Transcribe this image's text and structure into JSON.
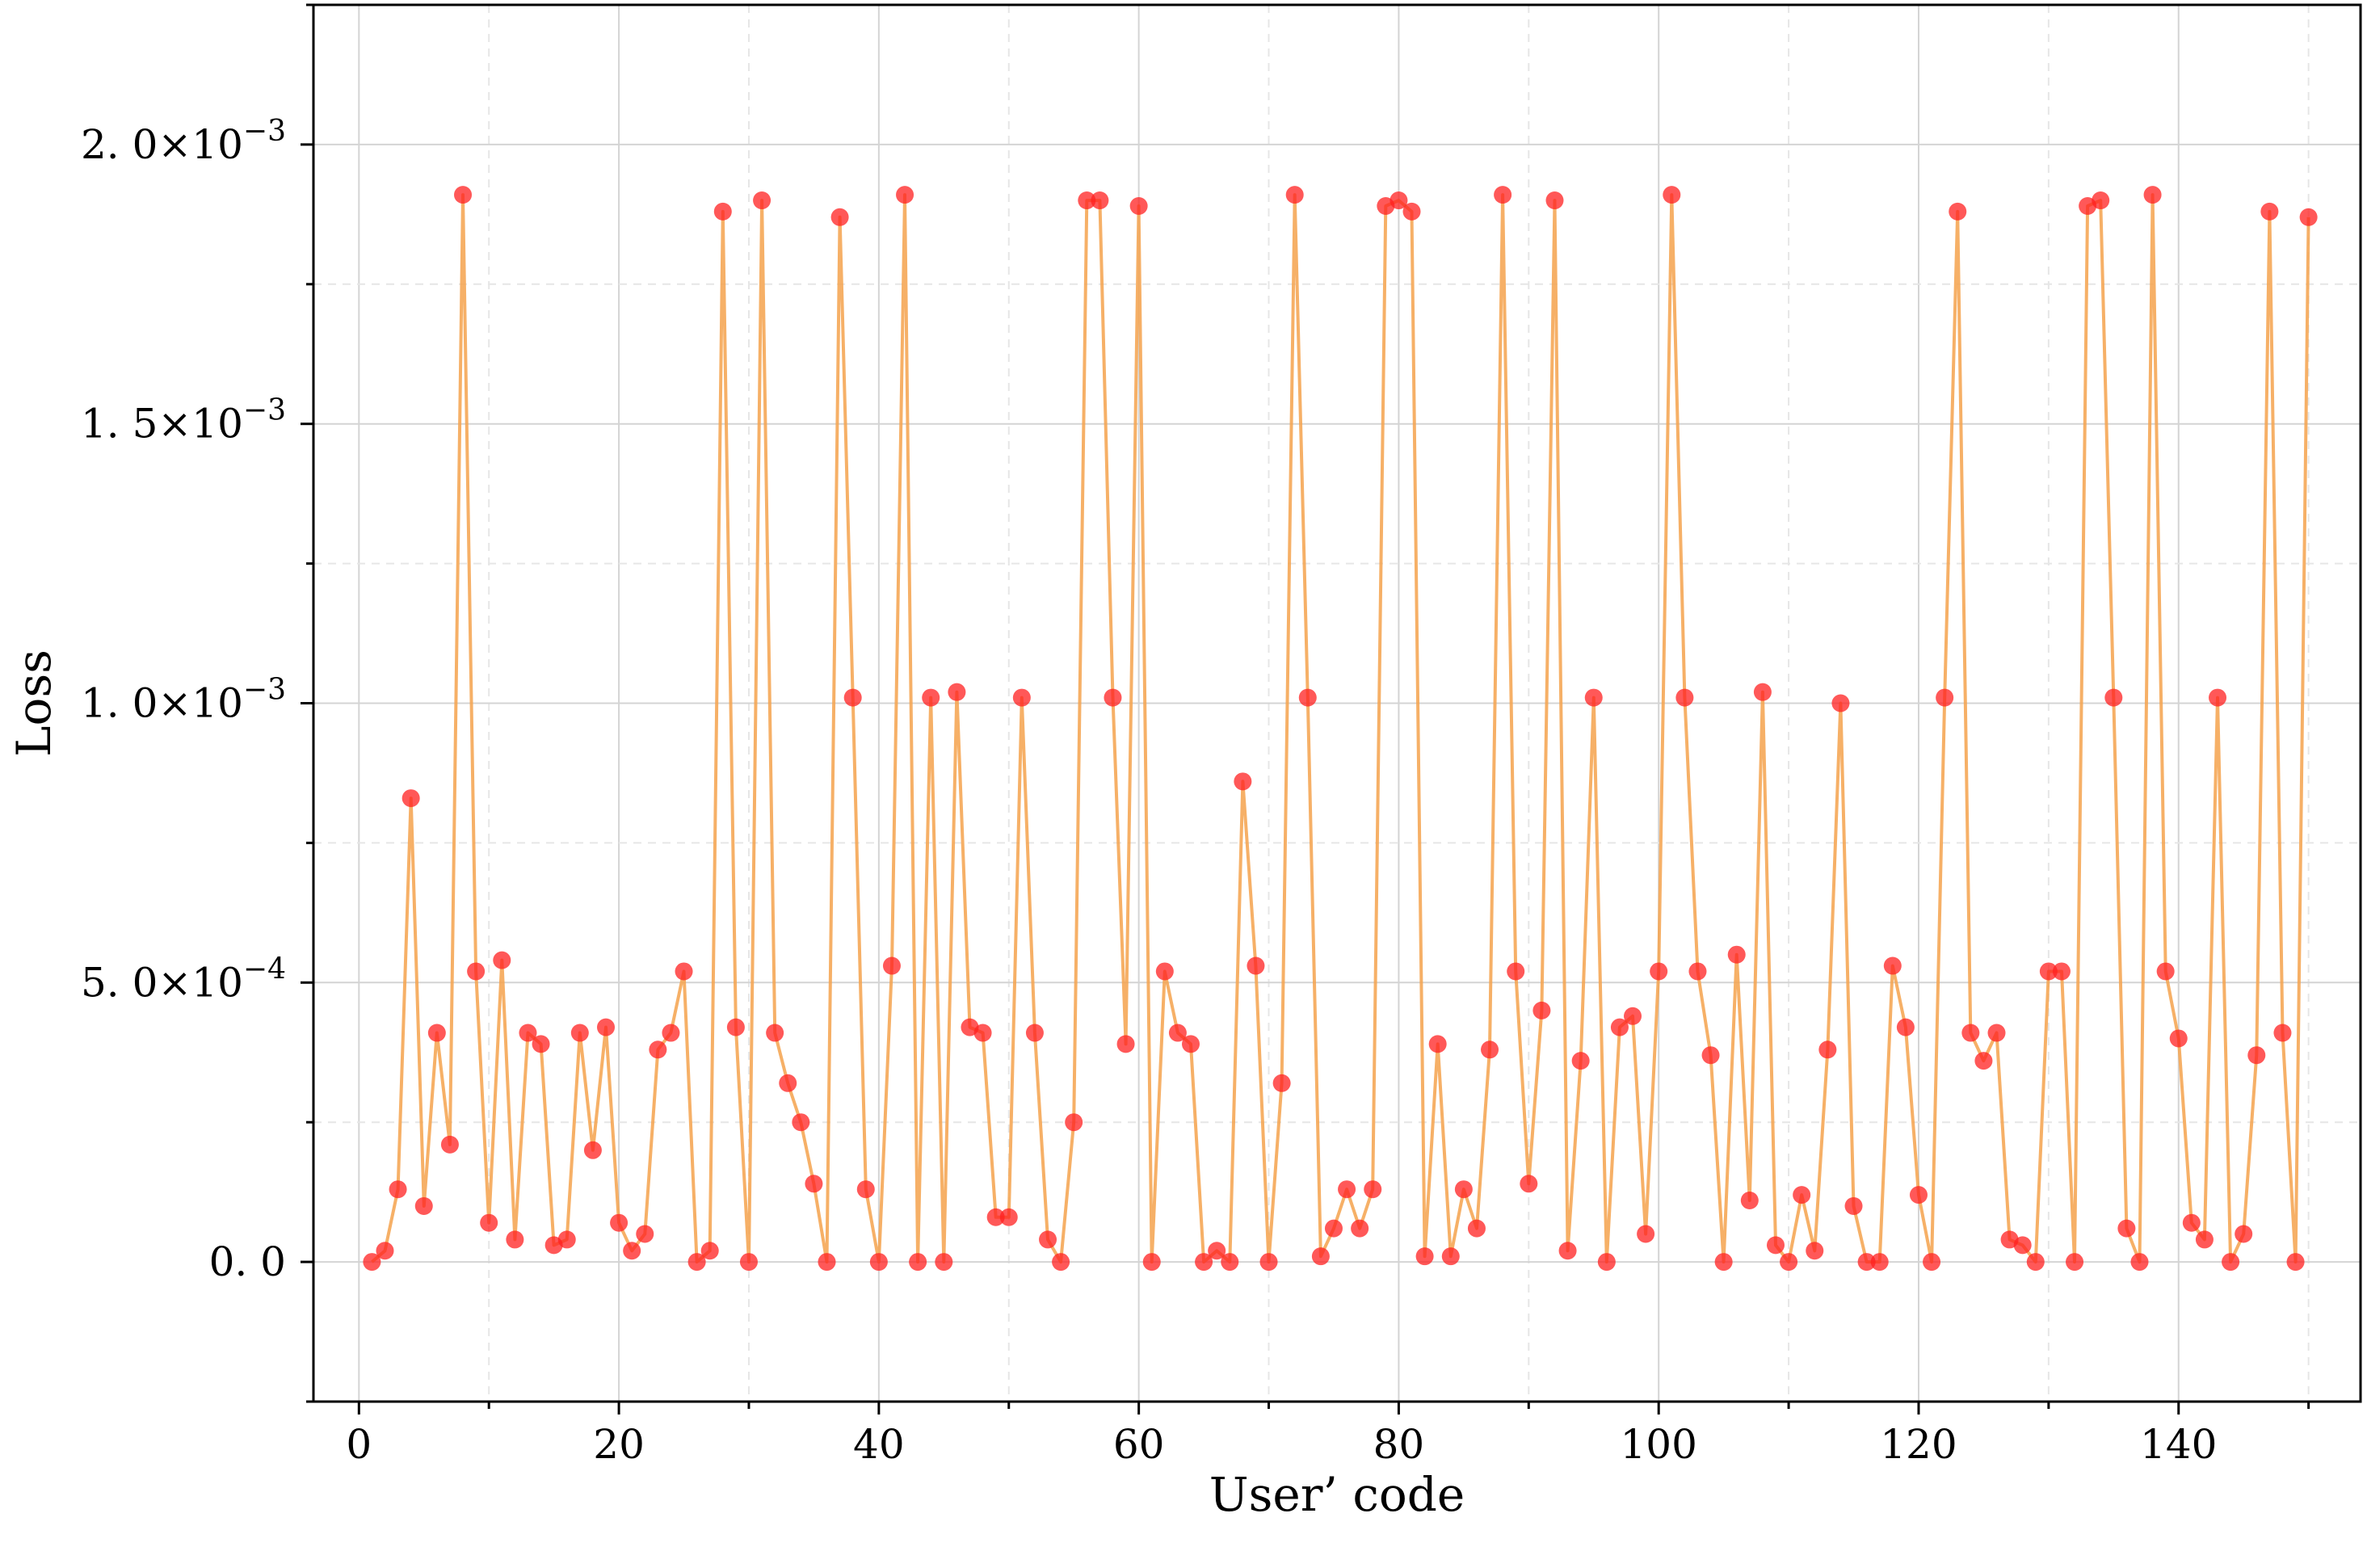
{
  "chart_data": {
    "type": "line",
    "xlabel": "User’ code",
    "ylabel": "Loss",
    "xlim": [
      -3.5,
      154
    ],
    "ylim": [
      -0.00025,
      0.00225
    ],
    "xticks": [
      0,
      20,
      40,
      60,
      80,
      100,
      120,
      140
    ],
    "xtick_labels": [
      "0",
      "20",
      "40",
      "60",
      "80",
      "100",
      "120",
      "140"
    ],
    "xticks_minor": [
      10,
      30,
      50,
      70,
      90,
      110,
      130,
      150
    ],
    "yticks": [
      0,
      0.0005,
      0.001,
      0.0015,
      0.002
    ],
    "ytick_labels": [
      {
        "mant": "0. 0",
        "exp": ""
      },
      {
        "mant": "5. 0×10",
        "exp": "−4"
      },
      {
        "mant": "1. 0×10",
        "exp": "−3"
      },
      {
        "mant": "1. 5×10",
        "exp": "−3"
      },
      {
        "mant": "2. 0×10",
        "exp": "−3"
      }
    ],
    "yticks_minor": [
      -0.00025,
      0.00025,
      0.00075,
      0.00125,
      0.00175,
      0.00225
    ],
    "grid": true,
    "line_color": "#f4a24c",
    "marker_color": "#ff2020",
    "series": [
      {
        "x": [
          1,
          2,
          3,
          4,
          5,
          6,
          7,
          8,
          9,
          10,
          11,
          12,
          13,
          14,
          15,
          16,
          17,
          18,
          19,
          20,
          21,
          22,
          23,
          24,
          25,
          26,
          27,
          28,
          29,
          30,
          31,
          32,
          33,
          34,
          35,
          36,
          37,
          38,
          39,
          40,
          41,
          42,
          43,
          44,
          45,
          46,
          47,
          48,
          49,
          50,
          51,
          52,
          53,
          54,
          55,
          56,
          57,
          58,
          59,
          60,
          61,
          62,
          63,
          64,
          65,
          66,
          67,
          68,
          69,
          70,
          71,
          72,
          73,
          74,
          75,
          76,
          77,
          78,
          79,
          80,
          81,
          82,
          83,
          84,
          85,
          86,
          87,
          88,
          89,
          90,
          91,
          92,
          93,
          94,
          95,
          96,
          97,
          98,
          99,
          100,
          101,
          102,
          103,
          104,
          105,
          106,
          107,
          108,
          109,
          110,
          111,
          112,
          113,
          114,
          115,
          116,
          117,
          118,
          119,
          120,
          121,
          122,
          123,
          124,
          125,
          126,
          127,
          128,
          129,
          130,
          131,
          132,
          133,
          134,
          135,
          136,
          137,
          138,
          139,
          140,
          141,
          142,
          143,
          144,
          145,
          146,
          147,
          148,
          149,
          150
        ],
        "y": [
          0.0,
          2e-05,
          0.00013,
          0.00083,
          0.0001,
          0.00041,
          0.00021,
          0.00191,
          0.00052,
          7e-05,
          0.00054,
          4e-05,
          0.00041,
          0.00039,
          3e-05,
          4e-05,
          0.00041,
          0.0002,
          0.00042,
          7e-05,
          2e-05,
          5e-05,
          0.00038,
          0.00041,
          0.00052,
          0.0,
          2e-05,
          0.00188,
          0.00042,
          0.0,
          0.0019,
          0.00041,
          0.00032,
          0.00025,
          0.00014,
          0.0,
          0.00187,
          0.00101,
          0.00013,
          0.0,
          0.00053,
          0.00191,
          0.0,
          0.00101,
          0.0,
          0.00102,
          0.00042,
          0.00041,
          8e-05,
          8e-05,
          0.00101,
          0.00041,
          4e-05,
          0.0,
          0.00025,
          0.0019,
          0.0019,
          0.00101,
          0.00039,
          0.00189,
          0.0,
          0.00052,
          0.00041,
          0.00039,
          0.0,
          2e-05,
          0.0,
          0.00086,
          0.00053,
          0.0,
          0.00032,
          0.00191,
          0.00101,
          1e-05,
          6e-05,
          0.00013,
          6e-05,
          0.00013,
          0.00189,
          0.0019,
          0.00188,
          1e-05,
          0.00039,
          1e-05,
          0.00013,
          6e-05,
          0.00038,
          0.00191,
          0.00052,
          0.00014,
          0.00045,
          0.0019,
          2e-05,
          0.00036,
          0.00101,
          0.0,
          0.00042,
          0.00044,
          5e-05,
          0.00052,
          0.00191,
          0.00101,
          0.00052,
          0.00037,
          0.0,
          0.00055,
          0.00011,
          0.00102,
          3e-05,
          0.0,
          0.00012,
          2e-05,
          0.00038,
          0.001,
          0.0001,
          0.0,
          0.0,
          0.00053,
          0.00042,
          0.00012,
          0.0,
          0.00101,
          0.00188,
          0.00041,
          0.00036,
          0.00041,
          4e-05,
          3e-05,
          0.0,
          0.00052,
          0.00052,
          0.0,
          0.00189,
          0.0019,
          0.00101,
          6e-05,
          0.0,
          0.00191,
          0.00052,
          0.0004,
          7e-05,
          4e-05,
          0.00101,
          0.0,
          5e-05,
          0.00037,
          0.00188,
          0.00041,
          0.0,
          0.00187
        ]
      }
    ]
  }
}
